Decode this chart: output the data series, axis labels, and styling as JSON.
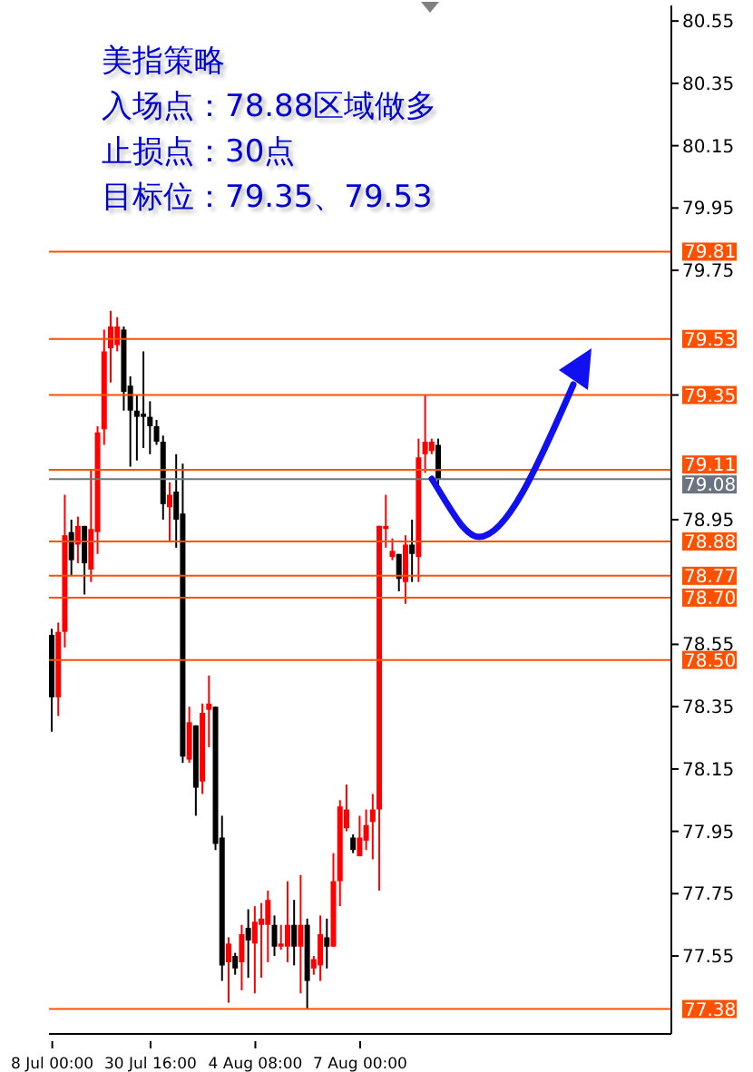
{
  "chart_data": {
    "type": "candlestick",
    "annotations": [
      "美指策略",
      "入场点：78.88区域做多",
      "止损点：30点",
      "目标位：79.35、79.53"
    ],
    "categories": [
      "8 Jul 00:00",
      null,
      null,
      null,
      null,
      null,
      null,
      null,
      null,
      null,
      null,
      null,
      null,
      null,
      null,
      "30 Jul 16:00",
      null,
      null,
      null,
      null,
      null,
      null,
      null,
      null,
      null,
      null,
      null,
      null,
      null,
      null,
      null,
      "4 Aug 08:00",
      null,
      null,
      null,
      null,
      null,
      null,
      null,
      null,
      null,
      null,
      null,
      null,
      null,
      null,
      null,
      "7 Aug 00:00",
      null,
      null,
      null,
      null,
      null,
      null,
      null,
      null,
      null,
      null,
      null,
      null,
      null,
      null,
      null,
      null,
      null,
      null,
      null,
      null,
      null,
      null,
      null,
      null,
      null,
      null,
      null,
      null,
      null,
      null,
      null,
      null,
      null,
      null,
      null,
      null,
      null,
      null,
      null,
      null,
      null,
      null,
      null,
      null,
      null,
      null,
      null
    ],
    "ohlc": [
      [
        78.58,
        78.6,
        78.27,
        78.38
      ],
      [
        78.38,
        78.62,
        78.32,
        78.59
      ],
      [
        78.59,
        79.03,
        78.54,
        78.9
      ],
      [
        78.91,
        78.95,
        78.77,
        78.82
      ],
      [
        78.87,
        78.96,
        78.81,
        78.93
      ],
      [
        78.93,
        78.93,
        78.71,
        78.81
      ],
      [
        78.79,
        79.11,
        78.75,
        78.92
      ],
      [
        78.91,
        79.25,
        78.84,
        79.23
      ],
      [
        79.24,
        79.56,
        79.19,
        79.49
      ],
      [
        79.5,
        79.62,
        79.39,
        79.57
      ],
      [
        79.51,
        79.6,
        79.49,
        79.57
      ],
      [
        79.56,
        79.57,
        79.3,
        79.36
      ],
      [
        79.38,
        79.41,
        79.12,
        79.3
      ],
      [
        79.3,
        79.35,
        79.14,
        79.28
      ],
      [
        79.29,
        79.49,
        79.18,
        79.28
      ],
      [
        79.28,
        79.33,
        79.16,
        79.25
      ],
      [
        79.25,
        79.27,
        79.19,
        79.2
      ],
      [
        79.2,
        79.22,
        78.95,
        79.0
      ],
      [
        78.99,
        79.07,
        78.88,
        79.03
      ],
      [
        79.04,
        79.16,
        78.86,
        78.95
      ],
      [
        78.97,
        79.13,
        78.17,
        78.19
      ],
      [
        78.18,
        78.35,
        78.17,
        78.3
      ],
      [
        78.29,
        78.29,
        78.0,
        78.09
      ],
      [
        78.11,
        78.36,
        78.07,
        78.33
      ],
      [
        78.34,
        78.45,
        78.22,
        78.36
      ],
      [
        78.35,
        78.35,
        77.89,
        77.91
      ],
      [
        77.93,
        78.0,
        77.47,
        77.52
      ],
      [
        77.53,
        77.61,
        77.4,
        77.59
      ],
      [
        77.55,
        77.56,
        77.49,
        77.51
      ],
      [
        77.53,
        77.65,
        77.44,
        77.62
      ],
      [
        77.64,
        77.7,
        77.48,
        77.6
      ],
      [
        77.59,
        77.71,
        77.43,
        77.66
      ],
      [
        77.65,
        77.72,
        77.48,
        77.67
      ],
      [
        77.65,
        77.76,
        77.53,
        77.73
      ],
      [
        77.65,
        77.68,
        77.55,
        77.58
      ],
      [
        77.58,
        77.65,
        77.57,
        77.59
      ],
      [
        77.58,
        77.79,
        77.53,
        77.65
      ],
      [
        77.65,
        77.73,
        77.52,
        77.58
      ],
      [
        77.58,
        77.81,
        77.43,
        77.65
      ],
      [
        77.65,
        77.67,
        77.38,
        77.47
      ],
      [
        77.51,
        77.55,
        77.49,
        77.54
      ],
      [
        77.52,
        77.68,
        77.47,
        77.62
      ],
      [
        77.61,
        77.67,
        77.51,
        77.58
      ],
      [
        77.58,
        77.88,
        77.58,
        77.79
      ],
      [
        77.79,
        78.05,
        77.71,
        78.03
      ],
      [
        77.96,
        78.1,
        77.95,
        78.02
      ],
      [
        77.93,
        77.94,
        77.88,
        77.89
      ],
      [
        77.87,
        78.0,
        77.87,
        77.93
      ],
      [
        77.92,
        78.02,
        77.89,
        77.97
      ],
      [
        77.98,
        78.07,
        77.86,
        78.02
      ],
      [
        78.02,
        78.93,
        77.76,
        78.93
      ],
      [
        78.92,
        79.03,
        78.86,
        78.93
      ],
      [
        78.83,
        78.89,
        78.82,
        78.85
      ],
      [
        78.84,
        78.84,
        78.72,
        78.76
      ],
      [
        78.75,
        78.9,
        78.68,
        78.87
      ],
      [
        78.87,
        78.95,
        78.75,
        78.84
      ],
      [
        78.83,
        79.21,
        78.75,
        79.15
      ],
      [
        79.16,
        79.35,
        79.1,
        79.2
      ],
      [
        79.17,
        79.21,
        79.16,
        79.2
      ],
      [
        79.19,
        79.21,
        79.05,
        79.08
      ],
      null,
      null,
      null,
      null,
      null,
      null,
      null,
      null,
      null,
      null,
      null,
      null,
      null,
      null,
      null,
      null,
      null,
      null,
      null,
      null,
      null,
      null,
      null,
      null,
      null,
      null,
      null,
      null,
      null,
      null,
      null,
      null,
      null,
      null,
      null
    ],
    "colors": [
      "#000000",
      "#ff0000",
      "#ff0000",
      "#000000",
      "#ff0000",
      "#000000",
      "#ff0000",
      "#ff0000",
      "#ff0000",
      "#ff0000",
      "#ff0000",
      "#000000",
      "#000000",
      "#000000",
      "#000000",
      "#000000",
      "#000000",
      "#000000",
      "#ff0000",
      "#000000",
      "#000000",
      "#ff0000",
      "#000000",
      "#ff0000",
      "#ff0000",
      "#000000",
      "#000000",
      "#ff0000",
      "#000000",
      "#ff0000",
      "#000000",
      "#ff0000",
      "#ff0000",
      "#ff0000",
      "#000000",
      "#ff0000",
      "#ff0000",
      "#000000",
      "#ff0000",
      "#000000",
      "#ff0000",
      "#ff0000",
      "#000000",
      "#ff0000",
      "#ff0000",
      "#ff0000",
      "#000000",
      "#ff0000",
      "#ff0000",
      "#ff0000",
      "#ff0000",
      "#ff0000",
      "#ff0000",
      "#000000",
      "#ff0000",
      "#000000",
      "#ff0000",
      "#ff0000",
      "#ff0000",
      "#000000",
      null,
      null,
      null,
      null,
      null,
      null,
      null,
      null,
      null,
      null,
      null,
      null,
      null,
      null,
      null,
      null,
      null,
      null,
      null,
      null,
      null,
      null,
      null,
      null,
      null,
      null,
      null,
      null,
      null,
      null,
      null,
      null,
      null,
      null,
      null
    ],
    "ylim": [
      77.3,
      80.6
    ],
    "yticks": [
      80.55,
      80.35,
      80.15,
      79.95,
      79.75,
      {
        "value": 79.35,
        "label": null
      },
      78.95,
      78.55,
      78.35,
      78.15,
      77.95,
      77.75,
      77.55
    ],
    "ref_lines": [
      {
        "axis": "y",
        "value": 79.81,
        "label": "79.81",
        "color": "#ff5000"
      },
      {
        "axis": "y",
        "value": 79.53,
        "label": "79.53",
        "color": "#ff5000"
      },
      {
        "axis": "y",
        "value": 79.35,
        "label": "79.35",
        "color": "#ff5000"
      },
      {
        "axis": "y",
        "value": 79.11,
        "label": "79.11",
        "color": "#ff5000"
      },
      {
        "axis": "y",
        "value": 79.08,
        "label": "79.08",
        "color": "#6a7480"
      },
      {
        "axis": "y",
        "value": 78.88,
        "label": "78.88",
        "color": "#ff5000"
      },
      {
        "axis": "y",
        "value": 78.77,
        "label": "78.77",
        "color": "#ff5000"
      },
      {
        "axis": "y",
        "value": 78.7,
        "label": "78.70",
        "color": "#ff5000"
      },
      {
        "axis": "y",
        "value": 78.5,
        "label": "78.50",
        "color": "#ff5000"
      },
      {
        "axis": "y",
        "value": 77.38,
        "label": "77.38",
        "color": "#ff5000"
      }
    ]
  }
}
